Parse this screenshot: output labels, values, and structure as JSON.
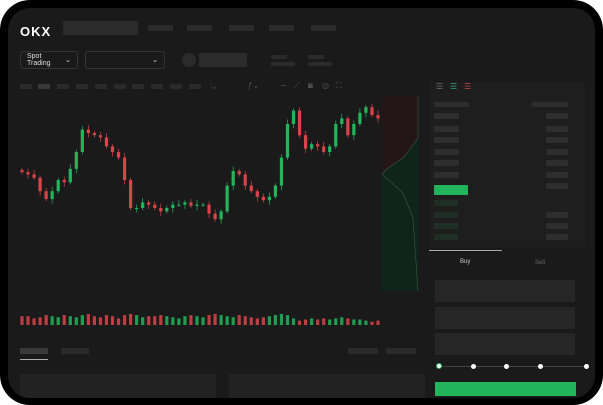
{
  "header": {
    "logo": "OKX"
  },
  "toolbar": {
    "market_select": "Spot Trading",
    "pair_select": ""
  },
  "trade": {
    "tabs": [
      "Buy",
      "Sell"
    ],
    "active_tab": "Buy",
    "slider_percent": 0
  },
  "colors": {
    "up": "#22b55c",
    "down": "#d9444a",
    "background": "#1a1a1a"
  },
  "icons": [
    "chevron-down-icon",
    "candle-type-icon",
    "indicator-icon",
    "line-tool-icon",
    "ruler-icon",
    "camera-icon",
    "settings-icon",
    "fullscreen-icon",
    "orderbook-both-icon",
    "orderbook-buy-icon",
    "orderbook-sell-icon"
  ],
  "chart_data": {
    "type": "candlestick",
    "close": [
      117,
      115,
      112,
      100,
      93,
      100,
      110,
      108,
      120,
      135,
      155,
      152,
      150,
      148,
      140,
      135,
      130,
      110,
      85,
      85,
      90,
      88,
      85,
      82,
      85,
      88,
      88,
      90,
      87,
      88,
      88,
      80,
      75,
      82,
      105,
      118,
      115,
      105,
      100,
      95,
      92,
      95,
      105,
      130,
      160,
      172,
      150,
      138,
      142,
      140,
      135,
      140,
      160,
      165,
      150,
      160,
      170,
      175,
      168,
      165
    ],
    "volume": [
      8,
      8,
      6,
      7,
      9,
      8,
      7,
      9,
      8,
      7,
      9,
      10,
      8,
      7,
      9,
      8,
      6,
      9,
      10,
      9,
      7,
      8,
      8,
      9,
      8,
      7,
      6,
      8,
      9,
      8,
      7,
      9,
      10,
      9,
      8,
      7,
      9,
      8,
      7,
      6,
      7,
      8,
      9,
      10,
      9,
      6,
      4,
      5,
      6,
      5,
      6,
      5,
      6,
      7,
      6,
      5,
      5,
      4,
      3,
      4
    ],
    "grid": false
  }
}
